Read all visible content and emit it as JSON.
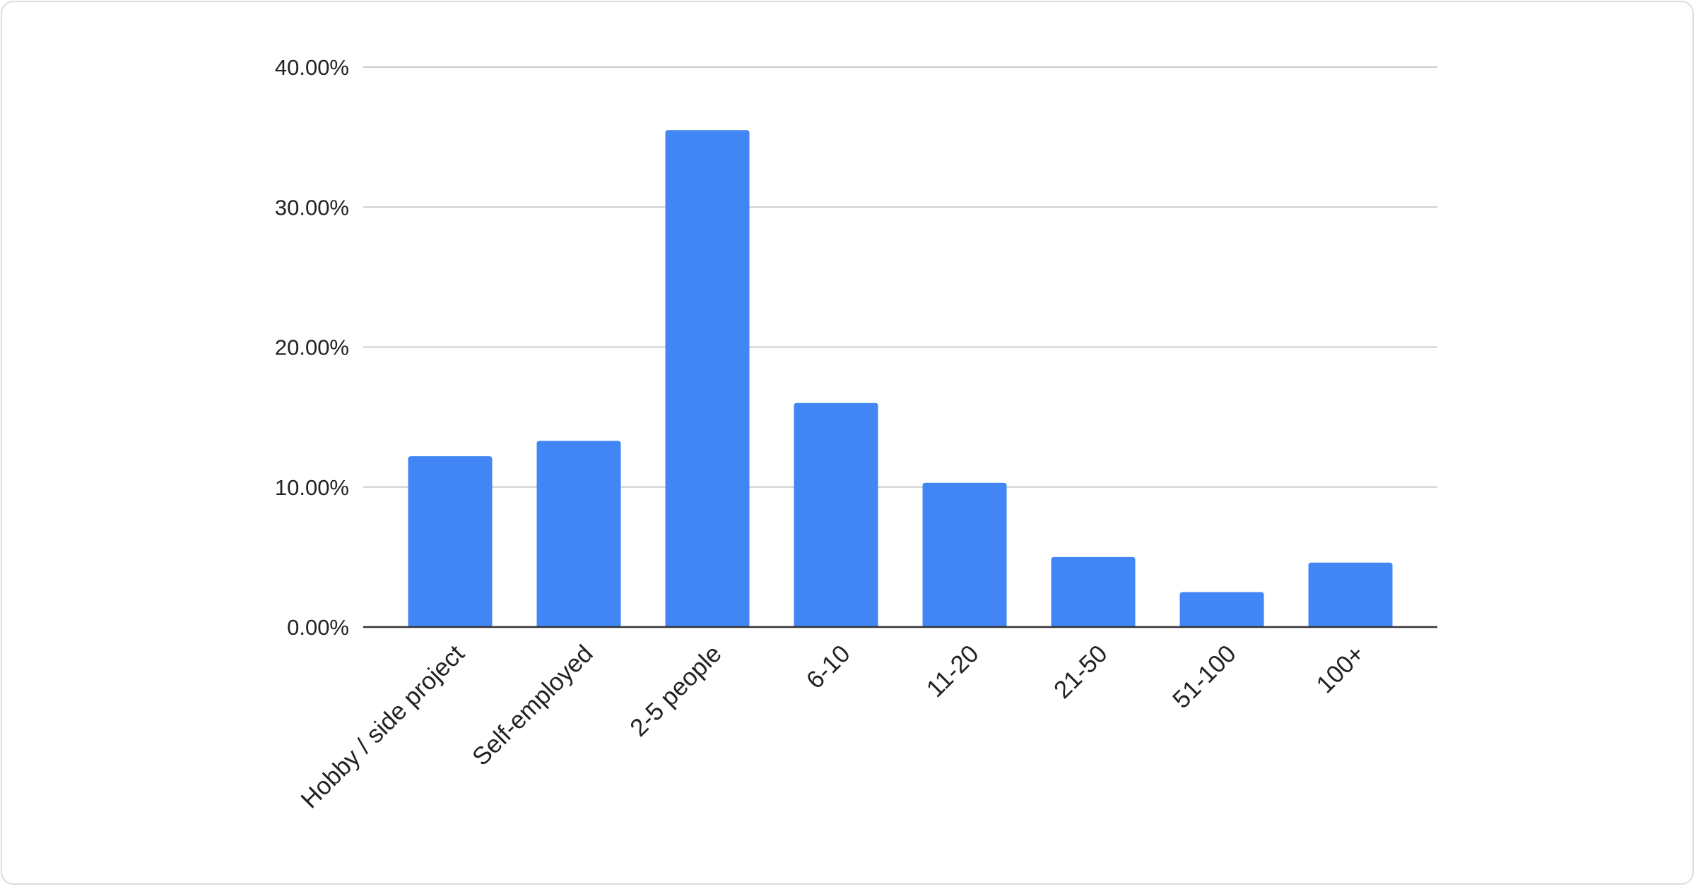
{
  "chart_data": {
    "type": "bar",
    "title": "",
    "xlabel": "",
    "ylabel": "",
    "categories": [
      "Hobby / side project",
      "Self-employed",
      "2-5 people",
      "6-10",
      "11-20",
      "21-50",
      "51-100",
      "100+"
    ],
    "values": [
      12.2,
      13.3,
      35.5,
      16.0,
      10.3,
      5.0,
      2.5,
      4.6
    ],
    "ylim": [
      0,
      40
    ],
    "yticks": [
      "0.00%",
      "10.00%",
      "20.00%",
      "30.00%",
      "40.00%"
    ],
    "grid": true,
    "legend": "none",
    "bar_color": "#4285f4"
  }
}
